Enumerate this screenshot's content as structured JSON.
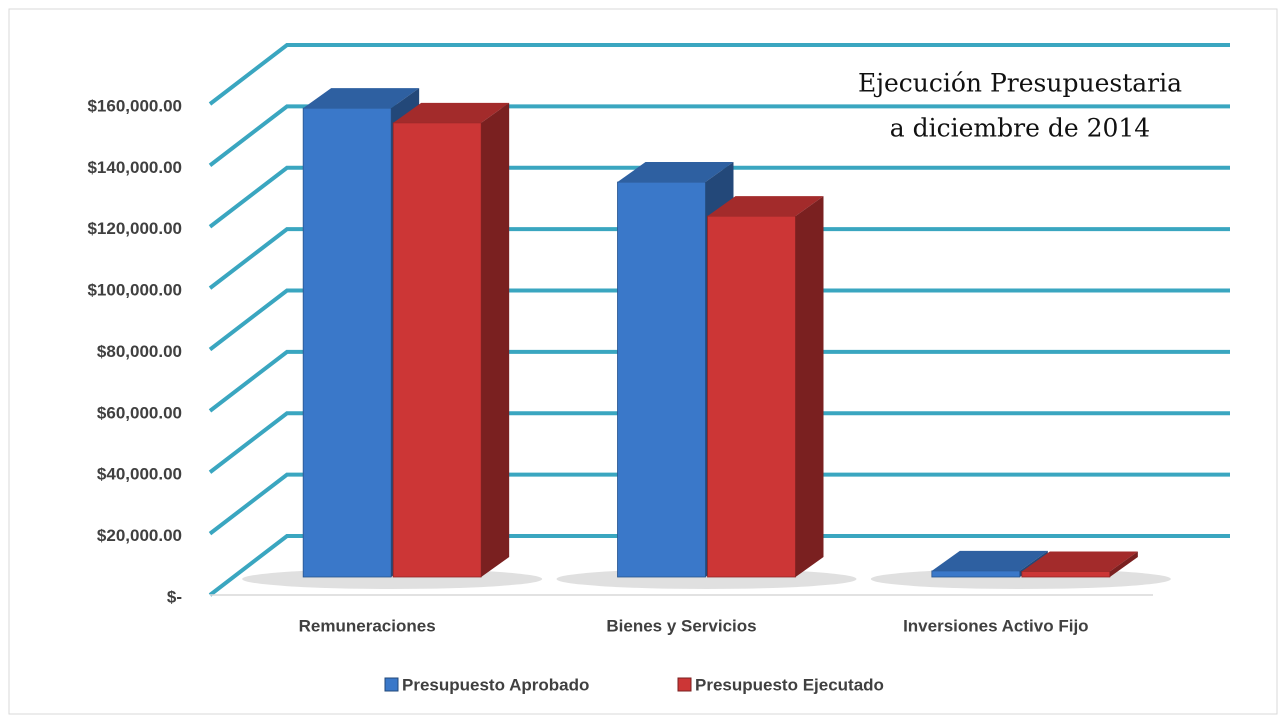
{
  "chart_data": {
    "type": "bar3d",
    "title": "Ejecución Presupuestaria",
    "subtitle": "a diciembre de 2014",
    "categories": [
      "Remuneraciones",
      "Bienes y Servicios",
      "Inversiones Activo Fijo"
    ],
    "series": [
      {
        "name": "Presupuesto Aprobado",
        "color": "#3a78c9",
        "values": [
          152800,
          128700,
          2000
        ]
      },
      {
        "name": "Presupuesto Ejecutado",
        "color": "#cc3636",
        "values": [
          148000,
          117600,
          1800
        ]
      }
    ],
    "ylim": [
      0,
      160000
    ],
    "yticks": [
      {
        "value": 0,
        "label": "$-"
      },
      {
        "value": 20000,
        "label": "$20,000.00"
      },
      {
        "value": 40000,
        "label": "$40,000.00"
      },
      {
        "value": 60000,
        "label": "$60,000.00"
      },
      {
        "value": 80000,
        "label": "$80,000.00"
      },
      {
        "value": 100000,
        "label": "$100,000.00"
      },
      {
        "value": 120000,
        "label": "$120,000.00"
      },
      {
        "value": 140000,
        "label": "$140,000.00"
      },
      {
        "value": 160000,
        "label": "$160,000.00"
      }
    ],
    "grid": true,
    "grid_color": "#3aa6c0",
    "legend": "bottom"
  }
}
